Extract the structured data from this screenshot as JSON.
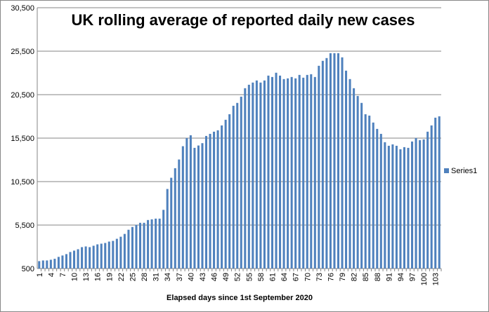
{
  "chart_data": {
    "type": "bar",
    "title": "UK rolling average of  reported daily new cases",
    "xlabel": "Elapsed days since 1st September 2020",
    "ylabel": "",
    "ylim": [
      500,
      30500
    ],
    "yticks": [
      "500",
      "5,500",
      "10,500",
      "15,500",
      "20,500",
      "25,500",
      "30,500"
    ],
    "ytick_values": [
      500,
      5500,
      10500,
      15500,
      20500,
      25500,
      30500
    ],
    "grid": true,
    "legend": {
      "position": "right",
      "entries": [
        "Series1"
      ]
    },
    "color": "#4f81bd",
    "x_tick_every": 3,
    "x": [
      1,
      2,
      3,
      4,
      5,
      6,
      7,
      8,
      9,
      10,
      11,
      12,
      13,
      14,
      15,
      16,
      17,
      18,
      19,
      20,
      21,
      22,
      23,
      24,
      25,
      26,
      27,
      28,
      29,
      30,
      31,
      32,
      33,
      34,
      35,
      36,
      37,
      38,
      39,
      40,
      41,
      42,
      43,
      44,
      45,
      46,
      47,
      48,
      49,
      50,
      51,
      52,
      53,
      54,
      55,
      56,
      57,
      58,
      59,
      60,
      61,
      62,
      63,
      64,
      65,
      66,
      67,
      68,
      69,
      70,
      71,
      72,
      73,
      74,
      75,
      76,
      77,
      78,
      79,
      80,
      81,
      82,
      83,
      84,
      85,
      86,
      87,
      88,
      89,
      90,
      91,
      92,
      93,
      94,
      95,
      96,
      97,
      98,
      99,
      100,
      101,
      102,
      103,
      104
    ],
    "values": [
      1350,
      1430,
      1430,
      1510,
      1620,
      1840,
      2000,
      2160,
      2400,
      2560,
      2720,
      2960,
      3040,
      2960,
      3120,
      3280,
      3360,
      3440,
      3600,
      3680,
      3920,
      4160,
      4480,
      4960,
      5280,
      5520,
      5760,
      5760,
      6080,
      6160,
      6240,
      6240,
      7250,
      9650,
      10940,
      12040,
      13040,
      14570,
      15510,
      15830,
      14380,
      14650,
      14920,
      15750,
      15990,
      16240,
      16400,
      16960,
      17610,
      18250,
      19220,
      19550,
      20270,
      21240,
      21640,
      21890,
      22130,
      21890,
      22130,
      22690,
      22530,
      23020,
      22690,
      22290,
      22370,
      22530,
      22370,
      22770,
      22450,
      22770,
      22850,
      22530,
      23820,
      24390,
      24710,
      25270,
      25270,
      25270,
      24790,
      23260,
      22290,
      21240,
      20350,
      19550,
      18250,
      18090,
      17290,
      16560,
      15990,
      15030,
      14620,
      14780,
      14620,
      14220,
      14460,
      14380,
      15110,
      15510,
      15270,
      15350,
      16240,
      16960,
      17850,
      18010
    ]
  }
}
